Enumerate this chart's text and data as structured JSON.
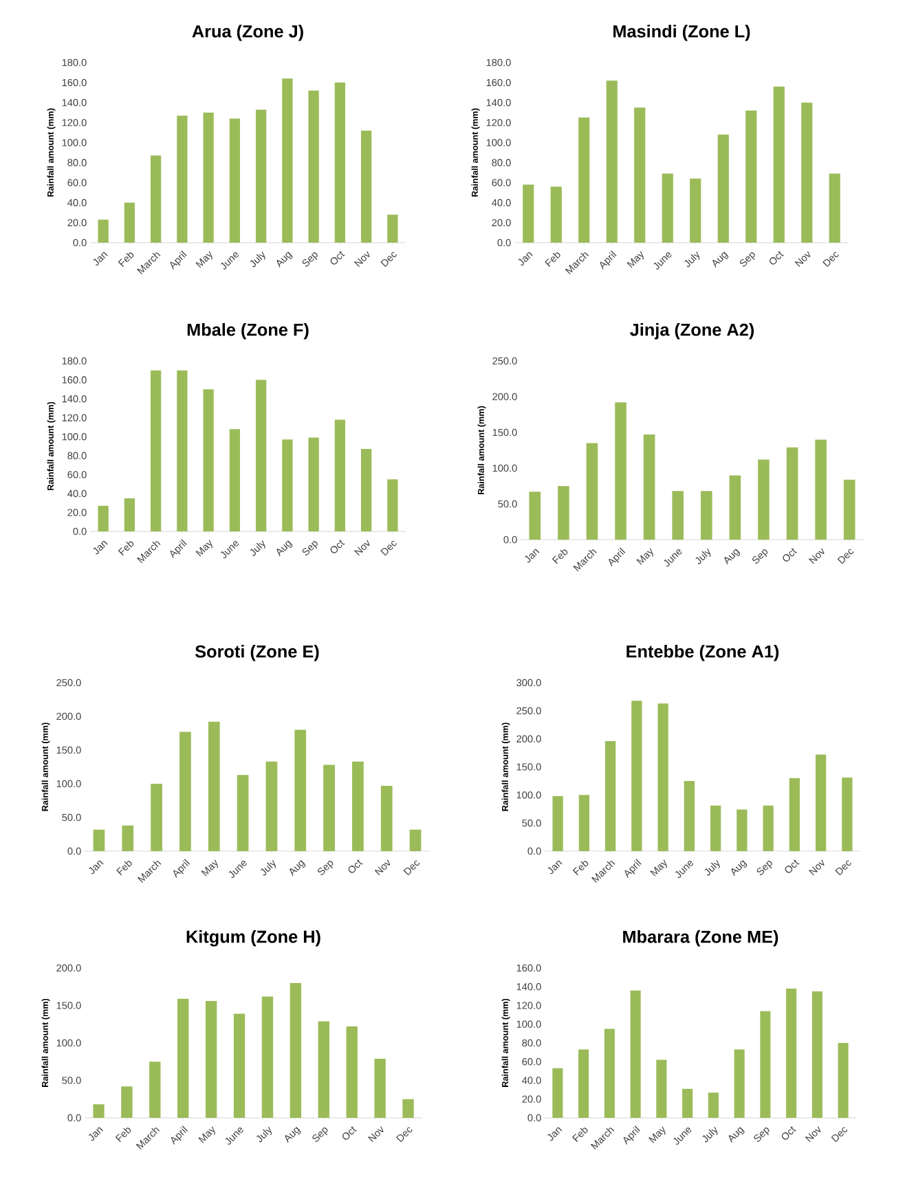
{
  "chart_data": [
    {
      "type": "bar",
      "title": "Arua (Zone J)",
      "ylabel": "Rainfall amount (mm)",
      "categories": [
        "Jan",
        "Feb",
        "March",
        "April",
        "May",
        "June",
        "July",
        "Aug",
        "Sep",
        "Oct",
        "Nov",
        "Dec"
      ],
      "values": [
        23,
        40,
        87,
        127,
        130,
        124,
        133,
        164,
        152,
        160,
        112,
        28
      ],
      "color": "#9bbb59",
      "ylim": [
        0,
        180
      ],
      "yticks": [
        {
          "value": 0,
          "label": "0.0"
        },
        {
          "value": 20,
          "label": "20.0"
        },
        {
          "value": 40,
          "label": "40.0"
        },
        {
          "value": 60,
          "label": "60.0"
        },
        {
          "value": 80,
          "label": "80.0"
        },
        {
          "value": 100,
          "label": "100.0"
        },
        {
          "value": 120,
          "label": "120.0"
        },
        {
          "value": 140,
          "label": "140.0"
        },
        {
          "value": 160,
          "label": "160.0"
        },
        {
          "value": 180,
          "label": "180.0"
        }
      ]
    },
    {
      "type": "bar",
      "title": "Masindi (Zone L)",
      "ylabel": "Rainfall amount (mm)",
      "categories": [
        "Jan",
        "Feb",
        "March",
        "April",
        "May",
        "June",
        "July",
        "Aug",
        "Sep",
        "Oct",
        "Nov",
        "Dec"
      ],
      "values": [
        58,
        56,
        125,
        162,
        135,
        69,
        64,
        108,
        132,
        156,
        140,
        69
      ],
      "color": "#9bbb59",
      "ylim": [
        0,
        180
      ],
      "yticks": [
        {
          "value": 0,
          "label": "0.0"
        },
        {
          "value": 20,
          "label": "20.0"
        },
        {
          "value": 40,
          "label": "40.0"
        },
        {
          "value": 60,
          "label": "60.0"
        },
        {
          "value": 80,
          "label": "80.0"
        },
        {
          "value": 100,
          "label": "100.0"
        },
        {
          "value": 120,
          "label": "120.0"
        },
        {
          "value": 140,
          "label": "140.0"
        },
        {
          "value": 160,
          "label": "160.0"
        },
        {
          "value": 180,
          "label": "180.0"
        }
      ]
    },
    {
      "type": "bar",
      "title": "Mbale (Zone F)",
      "ylabel": "Rainfall amount (mm)",
      "categories": [
        "Jan",
        "Feb",
        "March",
        "April",
        "May",
        "June",
        "July",
        "Aug",
        "Sep",
        "Oct",
        "Nov",
        "Dec"
      ],
      "values": [
        27,
        35,
        170,
        170,
        150,
        108,
        160,
        97,
        99,
        118,
        87,
        55
      ],
      "color": "#9bbb59",
      "ylim": [
        0,
        180
      ],
      "yticks": [
        {
          "value": 0,
          "label": "0.0"
        },
        {
          "value": 20,
          "label": "20.0"
        },
        {
          "value": 40,
          "label": "40.0"
        },
        {
          "value": 60,
          "label": "60.0"
        },
        {
          "value": 80,
          "label": "80.0"
        },
        {
          "value": 100,
          "label": "100.0"
        },
        {
          "value": 120,
          "label": "120.0"
        },
        {
          "value": 140,
          "label": "140.0"
        },
        {
          "value": 160,
          "label": "160.0"
        },
        {
          "value": 180,
          "label": "180.0"
        }
      ]
    },
    {
      "type": "bar",
      "title": "Jinja (Zone A2)",
      "ylabel": "Rainfall amount (mm)",
      "categories": [
        "Jan",
        "Feb",
        "March",
        "April",
        "May",
        "June",
        "July",
        "Aug",
        "Sep",
        "Oct",
        "Nov",
        "Dec"
      ],
      "values": [
        67,
        75,
        135,
        192,
        147,
        68,
        68,
        90,
        112,
        129,
        140,
        84
      ],
      "color": "#9bbb59",
      "ylim": [
        0,
        250
      ],
      "yticks": [
        {
          "value": 0,
          "label": "0.0"
        },
        {
          "value": 50,
          "label": "50.0"
        },
        {
          "value": 100,
          "label": "100.0"
        },
        {
          "value": 150,
          "label": "150.0"
        },
        {
          "value": 200,
          "label": "200.0"
        },
        {
          "value": 250,
          "label": "250.0"
        }
      ]
    },
    {
      "type": "bar",
      "title": "Soroti (Zone E)",
      "ylabel": "Rainfall amount (mm)",
      "categories": [
        "Jan",
        "Feb",
        "March",
        "April",
        "May",
        "June",
        "July",
        "Aug",
        "Sep",
        "Oct",
        "Nov",
        "Dec"
      ],
      "values": [
        32,
        38,
        100,
        177,
        192,
        113,
        133,
        180,
        128,
        133,
        97,
        32
      ],
      "color": "#9bbb59",
      "ylim": [
        0,
        250
      ],
      "yticks": [
        {
          "value": 0,
          "label": "0.0"
        },
        {
          "value": 50,
          "label": "50.0"
        },
        {
          "value": 100,
          "label": "100.0"
        },
        {
          "value": 150,
          "label": "150.0"
        },
        {
          "value": 200,
          "label": "200.0"
        },
        {
          "value": 250,
          "label": "250.0"
        }
      ]
    },
    {
      "type": "bar",
      "title": "Entebbe (Zone A1)",
      "ylabel": "Rainfall amount (mm)",
      "categories": [
        "Jan",
        "Feb",
        "March",
        "April",
        "May",
        "June",
        "July",
        "Aug",
        "Sep",
        "Oct",
        "Nov",
        "Dec"
      ],
      "values": [
        98,
        100,
        196,
        268,
        263,
        125,
        81,
        74,
        81,
        130,
        172,
        131
      ],
      "color": "#9bbb59",
      "ylim": [
        0,
        300
      ],
      "yticks": [
        {
          "value": 0,
          "label": "0.0"
        },
        {
          "value": 50,
          "label": "50.0"
        },
        {
          "value": 100,
          "label": "100.0"
        },
        {
          "value": 150,
          "label": "150.0"
        },
        {
          "value": 200,
          "label": "200.0"
        },
        {
          "value": 250,
          "label": "250.0"
        },
        {
          "value": 300,
          "label": "300.0"
        }
      ]
    },
    {
      "type": "bar",
      "title": "Kitgum (Zone H)",
      "ylabel": "Rainfall amount (mm)",
      "categories": [
        "Jan",
        "Feb",
        "March",
        "April",
        "May",
        "June",
        "July",
        "Aug",
        "Sep",
        "Oct",
        "Nov",
        "Dec"
      ],
      "values": [
        18,
        42,
        75,
        159,
        156,
        139,
        162,
        180,
        129,
        122,
        79,
        25
      ],
      "color": "#9bbb59",
      "ylim": [
        0,
        200
      ],
      "yticks": [
        {
          "value": 0,
          "label": "0.0"
        },
        {
          "value": 50,
          "label": "50.0"
        },
        {
          "value": 100,
          "label": "100.0"
        },
        {
          "value": 150,
          "label": "150.0"
        },
        {
          "value": 200,
          "label": "200.0"
        }
      ]
    },
    {
      "type": "bar",
      "title": "Mbarara (Zone ME)",
      "ylabel": "Rainfall amount (mm)",
      "categories": [
        "Jan",
        "Feb",
        "March",
        "April",
        "May",
        "June",
        "July",
        "Aug",
        "Sep",
        "Oct",
        "Nov",
        "Dec"
      ],
      "values": [
        53,
        73,
        95,
        136,
        62,
        31,
        27,
        73,
        114,
        138,
        135,
        80
      ],
      "color": "#9bbb59",
      "ylim": [
        0,
        160
      ],
      "yticks": [
        {
          "value": 0,
          "label": "0.0"
        },
        {
          "value": 20,
          "label": "20.0"
        },
        {
          "value": 40,
          "label": "40.0"
        },
        {
          "value": 60,
          "label": "60.0"
        },
        {
          "value": 80,
          "label": "80.0"
        },
        {
          "value": 100,
          "label": "100.0"
        },
        {
          "value": 120,
          "label": "120.0"
        },
        {
          "value": 140,
          "label": "140.0"
        },
        {
          "value": 160,
          "label": "160.0"
        }
      ]
    }
  ]
}
